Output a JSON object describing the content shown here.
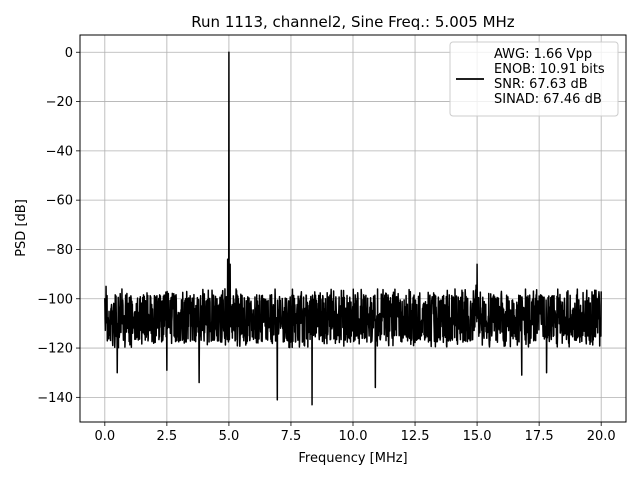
{
  "chart_data": {
    "type": "line",
    "title": "Run 1113, channel2, Sine Freq.: 5.005 MHz",
    "xlabel": "Frequency [MHz]",
    "ylabel": "PSD [dB]",
    "xlim": [
      -1.0,
      21.0
    ],
    "ylim": [
      -150,
      7
    ],
    "x_ticks": [
      0.0,
      2.5,
      5.0,
      7.5,
      10.0,
      12.5,
      15.0,
      17.5,
      20.0
    ],
    "x_tick_labels": [
      "0.0",
      "2.5",
      "5.0",
      "7.5",
      "10.0",
      "12.5",
      "15.0",
      "17.5",
      "20.0"
    ],
    "y_ticks": [
      0,
      -20,
      -40,
      -60,
      -80,
      -100,
      -120,
      -140
    ],
    "y_tick_labels": [
      "0",
      "−20",
      "−40",
      "−60",
      "−80",
      "−100",
      "−120",
      "−140"
    ],
    "grid": true,
    "legend_position": "top-right",
    "series": [
      {
        "color": "#000000",
        "legend_lines": [
          "AWG: 1.66 Vpp",
          "ENOB: 10.91 bits",
          "SNR: 67.63 dB",
          "SINAD: 67.46 dB"
        ],
        "noise_floor_db": -108,
        "noise_band_db": [
          -120,
          -96
        ],
        "features": [
          {
            "x": 5.005,
            "y": 0
          },
          {
            "x": 4.95,
            "y": -84
          },
          {
            "x": 5.05,
            "y": -86
          },
          {
            "x": 15.0,
            "y": -86
          },
          {
            "x": 0.5,
            "y": -130
          },
          {
            "x": 2.5,
            "y": -129
          },
          {
            "x": 3.8,
            "y": -134
          },
          {
            "x": 6.95,
            "y": -141
          },
          {
            "x": 8.35,
            "y": -143
          },
          {
            "x": 10.9,
            "y": -136
          },
          {
            "x": 16.8,
            "y": -131
          },
          {
            "x": 17.8,
            "y": -130
          },
          {
            "x": 0.05,
            "y": -95
          },
          {
            "x": 20.0,
            "y": -97
          }
        ]
      }
    ]
  }
}
